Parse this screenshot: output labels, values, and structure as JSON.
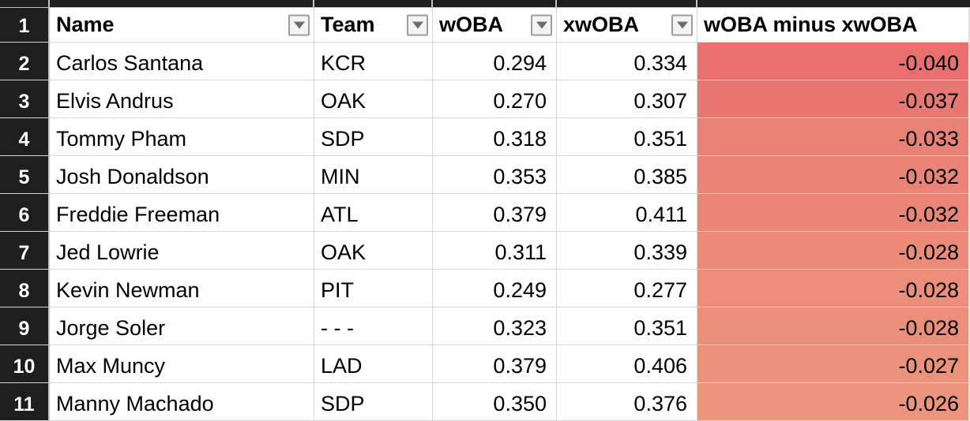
{
  "app_title": "Spreadsheet with wOBA vs xwOBA leaderboard",
  "colors": {
    "row_header_bg": "#1e1e1e",
    "row_header_text": "#ffffff",
    "gridline": "#d6d6d6",
    "strip_separator": "#c2c2c2",
    "filter_button_bg": "#f3f3f2",
    "filter_button_border": "#9d9d9d",
    "filter_arrow": "#6e6e6e",
    "cell_bg": "#ffffff",
    "text": "#000000"
  },
  "header": {
    "row_number": "1",
    "cells": [
      {
        "label": "Name",
        "filter": true
      },
      {
        "label": "Team",
        "filter": true
      },
      {
        "label": "wOBA",
        "filter": true
      },
      {
        "label": "xwOBA",
        "filter": true
      },
      {
        "label": "wOBA minus xwOBA",
        "filter": false
      }
    ]
  },
  "rows": [
    {
      "num": "2",
      "name": "Carlos Santana",
      "team": "KCR",
      "woba": "0.294",
      "xwoba": "0.334",
      "diff": "-0.040",
      "diff_color": "#e9706f"
    },
    {
      "num": "3",
      "name": "Elvis Andrus",
      "team": "OAK",
      "woba": "0.270",
      "xwoba": "0.307",
      "diff": "-0.037",
      "diff_color": "#e97772"
    },
    {
      "num": "4",
      "name": "Tommy Pham",
      "team": "SDP",
      "woba": "0.318",
      "xwoba": "0.351",
      "diff": "-0.033",
      "diff_color": "#ea8175"
    },
    {
      "num": "5",
      "name": "Josh Donaldson",
      "team": "MIN",
      "woba": "0.353",
      "xwoba": "0.385",
      "diff": "-0.032",
      "diff_color": "#eb8476"
    },
    {
      "num": "6",
      "name": "Freddie Freeman",
      "team": "ATL",
      "woba": "0.379",
      "xwoba": "0.411",
      "diff": "-0.032",
      "diff_color": "#eb8677"
    },
    {
      "num": "7",
      "name": "Jed Lowrie",
      "team": "OAK",
      "woba": "0.311",
      "xwoba": "0.339",
      "diff": "-0.028",
      "diff_color": "#ec8c78"
    },
    {
      "num": "8",
      "name": "Kevin Newman",
      "team": "PIT",
      "woba": "0.249",
      "xwoba": "0.277",
      "diff": "-0.028",
      "diff_color": "#ec8e79"
    },
    {
      "num": "9",
      "name": "Jorge Soler",
      "team": "- - -",
      "woba": "0.323",
      "xwoba": "0.351",
      "diff": "-0.028",
      "diff_color": "#ec8f79"
    },
    {
      "num": "10",
      "name": "Max Muncy",
      "team": "LAD",
      "woba": "0.379",
      "xwoba": "0.406",
      "diff": "-0.027",
      "diff_color": "#ed927a"
    },
    {
      "num": "11",
      "name": "Manny Machado",
      "team": "SDP",
      "woba": "0.350",
      "xwoba": "0.376",
      "diff": "-0.026",
      "diff_color": "#ed957c"
    }
  ]
}
